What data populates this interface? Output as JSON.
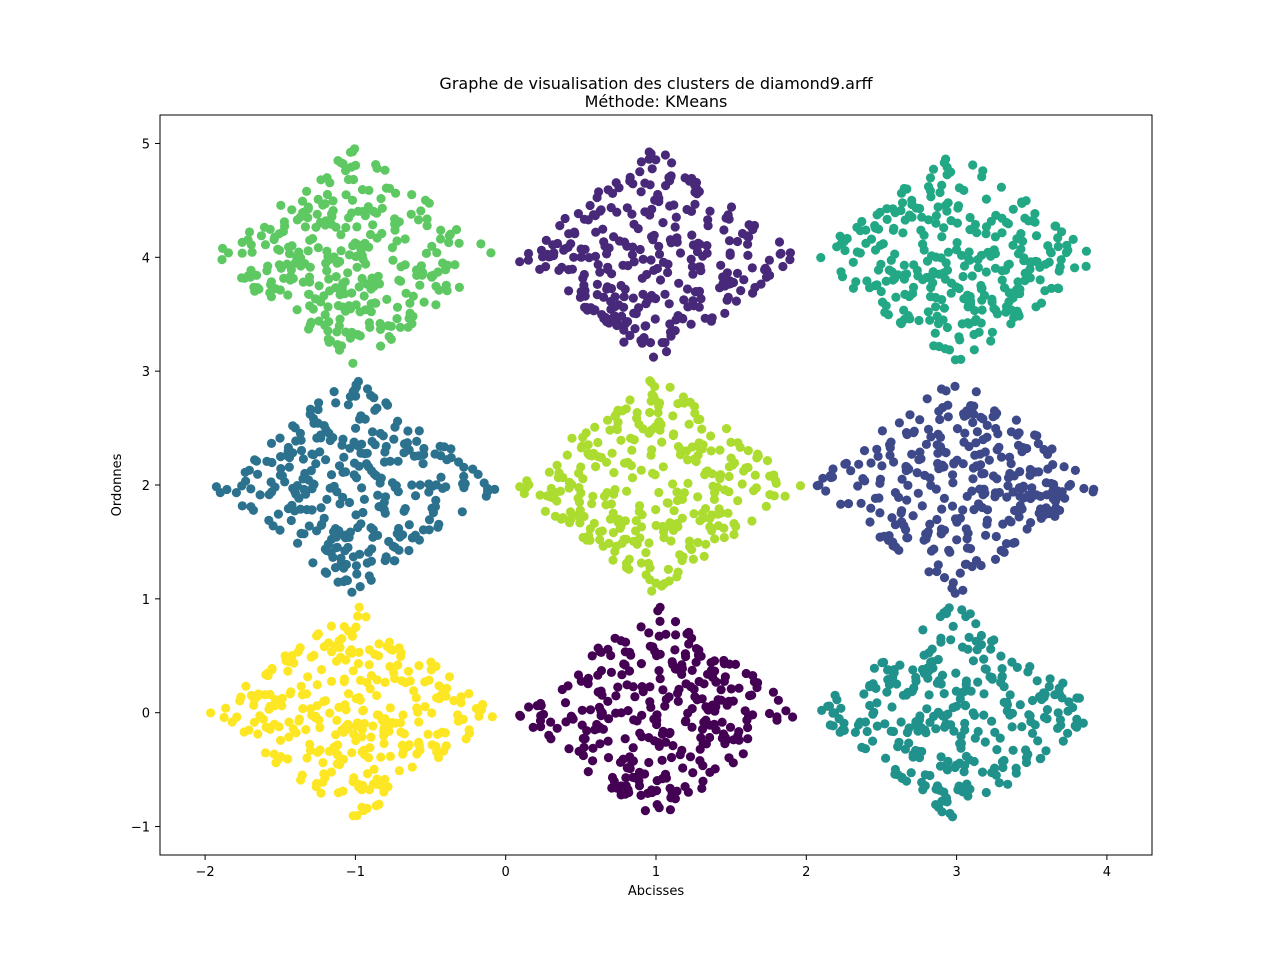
{
  "chart_data": {
    "type": "scatter",
    "title": "Graphe de visualisation des clusters de diamond9.arff",
    "subtitle": "Méthode: KMeans",
    "xlabel": "Abcisses",
    "ylabel": "Ordonnes",
    "xlim": [
      -2.3,
      4.3
    ],
    "ylim": [
      -1.25,
      5.25
    ],
    "xticks": [
      -2,
      -1,
      0,
      1,
      2,
      3,
      4
    ],
    "yticks": [
      -1,
      0,
      1,
      2,
      3,
      4,
      5
    ],
    "xtick_labels": [
      "−2",
      "−1",
      "0",
      "1",
      "2",
      "3",
      "4"
    ],
    "ytick_labels": [
      "−1",
      "0",
      "1",
      "2",
      "3",
      "4",
      "5"
    ],
    "grid": false,
    "legend": "none",
    "point_count_per_cluster": 300,
    "clusters": [
      {
        "center": [
          1,
          0
        ],
        "half_width": 0.97,
        "half_height": 0.97,
        "color": "#440154"
      },
      {
        "center": [
          3,
          4
        ],
        "half_width": 0.97,
        "half_height": 0.97,
        "color": "#22a884"
      },
      {
        "center": [
          1,
          4
        ],
        "half_width": 0.97,
        "half_height": 0.97,
        "color": "#482878"
      },
      {
        "center": [
          -1,
          2
        ],
        "half_width": 0.97,
        "half_height": 0.97,
        "color": "#2c728e"
      },
      {
        "center": [
          3,
          2
        ],
        "half_width": 0.97,
        "half_height": 0.97,
        "color": "#3e4989"
      },
      {
        "center": [
          3,
          0
        ],
        "half_width": 0.97,
        "half_height": 0.97,
        "color": "#21918c"
      },
      {
        "center": [
          -1,
          4
        ],
        "half_width": 0.97,
        "half_height": 0.97,
        "color": "#5ec962"
      },
      {
        "center": [
          1,
          2
        ],
        "half_width": 0.97,
        "half_height": 0.97,
        "color": "#addc30"
      },
      {
        "center": [
          -1,
          0
        ],
        "half_width": 0.97,
        "half_height": 0.97,
        "color": "#fde725"
      }
    ]
  }
}
